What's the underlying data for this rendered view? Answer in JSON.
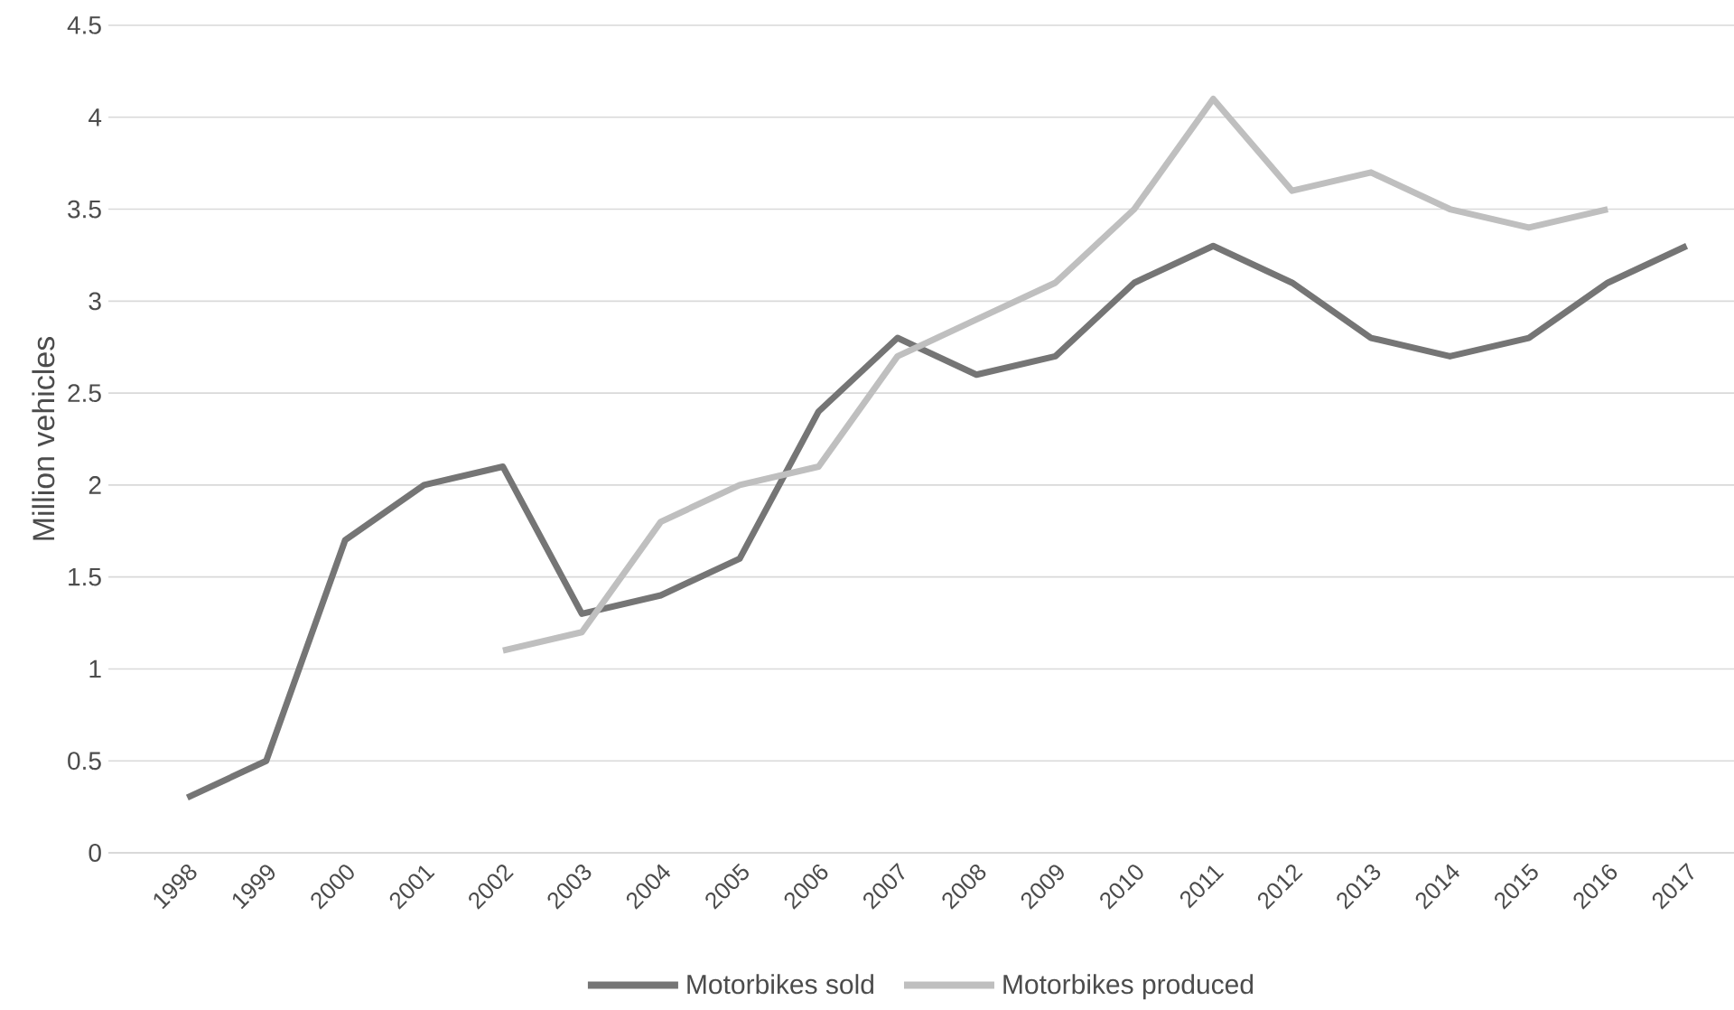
{
  "chart_data": {
    "type": "line",
    "ylabel": "Million vehicles",
    "categories": [
      "1998",
      "1999",
      "2000",
      "2001",
      "2002",
      "2003",
      "2004",
      "2005",
      "2006",
      "2007",
      "2008",
      "2009",
      "2010",
      "2011",
      "2012",
      "2013",
      "2014",
      "2015",
      "2016",
      "2017"
    ],
    "series": [
      {
        "name": "Motorbikes sold",
        "color": "#757575",
        "values": [
          0.3,
          0.5,
          1.7,
          2.0,
          2.1,
          1.3,
          1.4,
          1.6,
          2.4,
          2.8,
          2.6,
          2.7,
          3.1,
          3.3,
          3.1,
          2.8,
          2.7,
          2.8,
          3.1,
          3.3
        ]
      },
      {
        "name": "Motorbikes produced",
        "color": "#bfbfbf",
        "values": [
          null,
          null,
          null,
          null,
          1.1,
          1.2,
          1.8,
          2.0,
          2.1,
          2.7,
          2.9,
          3.1,
          3.5,
          4.1,
          3.6,
          3.7,
          3.5,
          3.4,
          3.5,
          null
        ]
      }
    ],
    "ylim": [
      0,
      4.5
    ],
    "yticks": [
      0,
      0.5,
      1,
      1.5,
      2,
      2.5,
      3,
      3.5,
      4,
      4.5
    ],
    "grid": "y",
    "legend": "bottom"
  }
}
